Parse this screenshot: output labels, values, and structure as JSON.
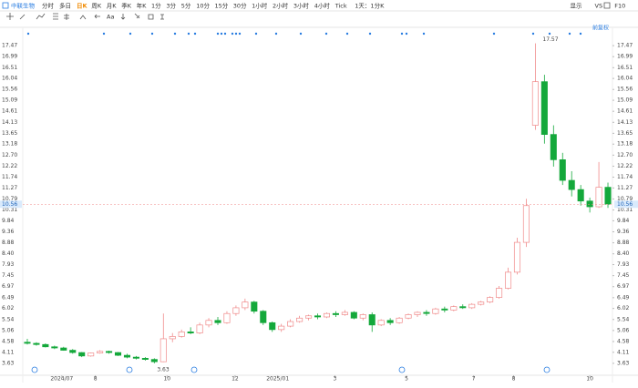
{
  "toolbar": {
    "stock": "中联生物",
    "periods": [
      "分时",
      "多日",
      "日K",
      "周K",
      "月K",
      "季K",
      "年K",
      "1分",
      "3分",
      "5分",
      "10分",
      "15分",
      "30分",
      "1小时",
      "2小时",
      "3小时",
      "4小时",
      "Tick",
      "1天：1分K"
    ],
    "active": "日K",
    "right": [
      "显示",
      "VS",
      "F10"
    ],
    "text_tool": "Aa"
  },
  "chart_data": {
    "type": "candlestick",
    "adjust_label": "前复权",
    "candles": [
      [
        4.55,
        4.7,
        4.45,
        4.5
      ],
      [
        4.5,
        4.55,
        4.4,
        4.45
      ],
      [
        4.45,
        4.5,
        4.32,
        4.35
      ],
      [
        4.35,
        4.4,
        4.25,
        4.3
      ],
      [
        4.3,
        4.35,
        4.18,
        4.2
      ],
      [
        4.2,
        4.25,
        4.05,
        4.1
      ],
      [
        4.1,
        4.12,
        3.9,
        3.95
      ],
      [
        3.95,
        4.1,
        3.92,
        4.08
      ],
      [
        4.08,
        4.2,
        4.05,
        4.15
      ],
      [
        4.15,
        4.18,
        4.05,
        4.1
      ],
      [
        4.1,
        4.12,
        3.95,
        3.98
      ],
      [
        3.98,
        4.05,
        3.85,
        3.9
      ],
      [
        3.9,
        3.95,
        3.8,
        3.85
      ],
      [
        3.85,
        3.9,
        3.75,
        3.8
      ],
      [
        3.8,
        3.85,
        3.63,
        3.7
      ],
      [
        3.7,
        5.8,
        3.68,
        4.7
      ],
      [
        4.7,
        4.95,
        4.55,
        4.8
      ],
      [
        4.8,
        5.1,
        4.75,
        5.0
      ],
      [
        5.0,
        5.2,
        4.9,
        4.95
      ],
      [
        4.95,
        5.4,
        4.9,
        5.3
      ],
      [
        5.3,
        5.6,
        5.2,
        5.5
      ],
      [
        5.5,
        5.65,
        5.3,
        5.4
      ],
      [
        5.4,
        5.9,
        5.35,
        5.8
      ],
      [
        5.8,
        6.15,
        5.7,
        6.05
      ],
      [
        6.05,
        6.45,
        5.95,
        6.3
      ],
      [
        6.3,
        6.35,
        5.8,
        5.9
      ],
      [
        5.9,
        5.95,
        5.3,
        5.4
      ],
      [
        5.4,
        5.45,
        5.0,
        5.1
      ],
      [
        5.1,
        5.35,
        5.0,
        5.25
      ],
      [
        5.25,
        5.55,
        5.2,
        5.45
      ],
      [
        5.45,
        5.7,
        5.4,
        5.6
      ],
      [
        5.6,
        5.75,
        5.5,
        5.7
      ],
      [
        5.7,
        5.8,
        5.55,
        5.65
      ],
      [
        5.65,
        5.85,
        5.6,
        5.8
      ],
      [
        5.8,
        5.9,
        5.65,
        5.75
      ],
      [
        5.75,
        5.95,
        5.7,
        5.85
      ],
      [
        5.85,
        5.9,
        5.55,
        5.6
      ],
      [
        5.6,
        5.8,
        5.5,
        5.75
      ],
      [
        5.75,
        5.85,
        5.0,
        5.3
      ],
      [
        5.3,
        5.55,
        5.25,
        5.5
      ],
      [
        5.5,
        5.6,
        5.3,
        5.4
      ],
      [
        5.4,
        5.65,
        5.35,
        5.6
      ],
      [
        5.6,
        5.8,
        5.55,
        5.75
      ],
      [
        5.75,
        5.9,
        5.65,
        5.85
      ],
      [
        5.85,
        5.95,
        5.7,
        5.8
      ],
      [
        5.8,
        6.05,
        5.75,
        6.0
      ],
      [
        6.0,
        6.1,
        5.85,
        5.95
      ],
      [
        5.95,
        6.15,
        5.9,
        6.1
      ],
      [
        6.1,
        6.2,
        6.0,
        6.05
      ],
      [
        6.05,
        6.25,
        6.0,
        6.2
      ],
      [
        6.2,
        6.35,
        6.15,
        6.3
      ],
      [
        6.3,
        6.55,
        6.25,
        6.5
      ],
      [
        6.5,
        7.0,
        6.45,
        6.9
      ],
      [
        6.9,
        7.8,
        6.85,
        7.6
      ],
      [
        7.6,
        9.1,
        7.5,
        8.9
      ],
      [
        8.9,
        10.8,
        8.7,
        10.5
      ],
      [
        14.0,
        17.57,
        13.8,
        15.9
      ],
      [
        15.9,
        16.2,
        13.2,
        13.6
      ],
      [
        13.6,
        14.0,
        12.2,
        12.5
      ],
      [
        12.5,
        12.8,
        11.4,
        11.6
      ],
      [
        11.6,
        12.0,
        10.9,
        11.2
      ],
      [
        11.2,
        11.4,
        10.5,
        10.7
      ],
      [
        10.7,
        10.85,
        10.2,
        10.45
      ],
      [
        10.45,
        12.4,
        10.4,
        11.3
      ],
      [
        11.3,
        11.5,
        10.4,
        10.56
      ]
    ],
    "up_color": "#f08a8a",
    "down_color": "#14a83b",
    "last_price": 10.56,
    "max_label": 17.57,
    "min_label": 3.63,
    "xlim": [
      0,
      65
    ],
    "xticks": [
      {
        "value": 4.3,
        "label": "2024/07"
      },
      {
        "value": 8,
        "label": "8"
      },
      {
        "value": 15.9,
        "label": "10"
      },
      {
        "value": 23.4,
        "label": "12"
      },
      {
        "value": 28.1,
        "label": "2025/01"
      },
      {
        "value": 34.4,
        "label": "3"
      },
      {
        "value": 42.3,
        "label": "5"
      },
      {
        "value": 49.7,
        "label": "7"
      },
      {
        "value": 54.1,
        "label": "8"
      },
      {
        "value": 62.5,
        "label": "10"
      }
    ],
    "ylim": [
      3.19,
      17.95
    ],
    "yticks": [
      17.47,
      16.99,
      16.51,
      16.04,
      15.56,
      15.09,
      14.61,
      14.13,
      13.65,
      13.18,
      {
        "value": 12.7,
        "label": "12.70"
      },
      12.22,
      11.74,
      11.27,
      10.79,
      10.31,
      9.84,
      9.36,
      8.88,
      {
        "value": 8.4,
        "label": "8.40"
      },
      7.93,
      7.45,
      6.97,
      6.49,
      6.02,
      5.54,
      5.06,
      4.58,
      4.11,
      3.63
    ]
  }
}
